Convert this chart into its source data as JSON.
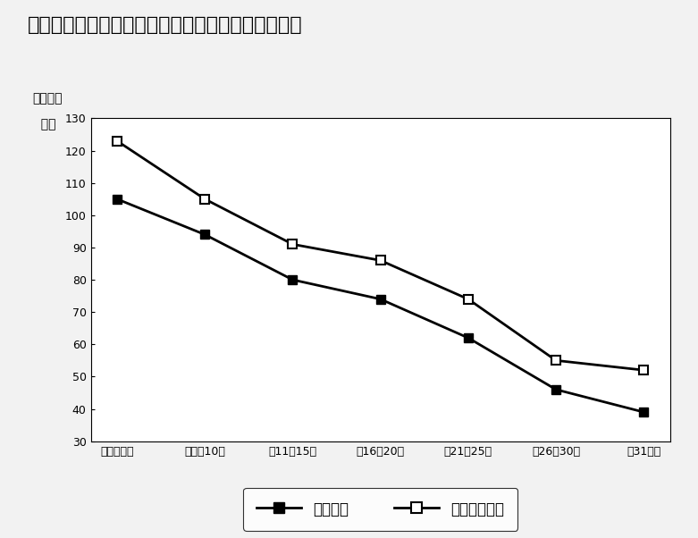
{
  "title": "図表６－３　中古マンションの築年帯別平均㎡単価",
  "ylabel_line1": "（万円／",
  "ylabel_line2": "  ㎡）",
  "categories": [
    "築０～５年",
    "築６～10年",
    "築11～15年",
    "築16～20年",
    "築21～25年",
    "築26～30年",
    "築31年～"
  ],
  "series_keiyaku": [
    105,
    94,
    80,
    74,
    62,
    46,
    39
  ],
  "series_shinki": [
    123,
    105,
    91,
    86,
    74,
    55,
    52
  ],
  "legend_keiyaku": "成約物件",
  "legend_shinki": "新規登録物件",
  "ylim": [
    30,
    130
  ],
  "yticks": [
    30,
    40,
    50,
    60,
    70,
    80,
    90,
    100,
    110,
    120,
    130
  ],
  "line_color": "#000000",
  "bg_color": "#f2f2f2",
  "plot_bg": "#ffffff",
  "title_fontsize": 16,
  "axis_fontsize": 10,
  "tick_fontsize": 9,
  "legend_fontsize": 12
}
